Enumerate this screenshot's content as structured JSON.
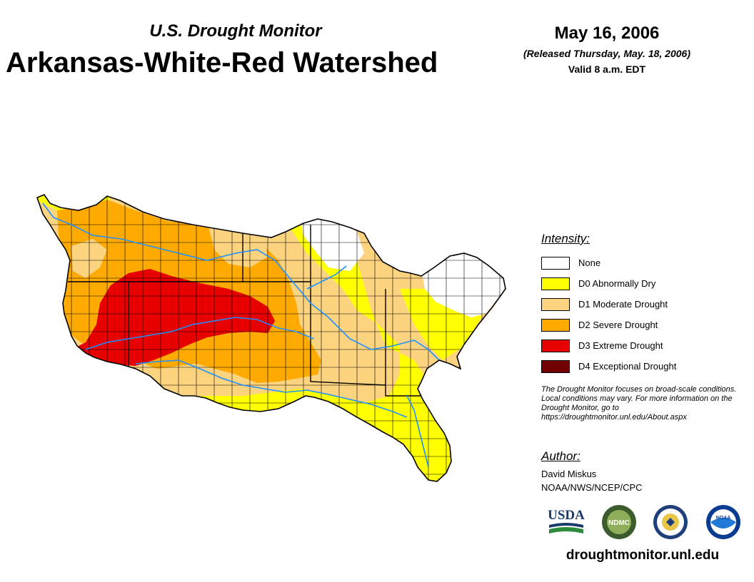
{
  "header": {
    "subtitle": "U.S. Drought Monitor",
    "title": "Arkansas-White-Red Watershed",
    "date": "May 16, 2006",
    "released": "(Released Thursday, May. 18, 2006)",
    "valid": "Valid 8 a.m. EDT"
  },
  "legend": {
    "heading": "Intensity:",
    "items": [
      {
        "label": "None",
        "color": "#ffffff"
      },
      {
        "label": "D0 Abnormally Dry",
        "color": "#ffff00"
      },
      {
        "label": "D1 Moderate Drought",
        "color": "#fcd37f"
      },
      {
        "label": "D2 Severe Drought",
        "color": "#ffaa00"
      },
      {
        "label": "D3 Extreme Drought",
        "color": "#e60000"
      },
      {
        "label": "D4 Exceptional Drought",
        "color": "#730000"
      }
    ]
  },
  "note": "The Drought Monitor focuses on broad-scale conditions. Local conditions may vary. For more information on the Drought Monitor, go to https://droughtmonitor.unl.edu/About.aspx",
  "author": {
    "heading": "Author:",
    "name": "David Miskus",
    "org": "NOAA/NWS/NCEP/CPC"
  },
  "logos": {
    "usda": "USDA",
    "ndmc": "NDMC",
    "noaa": "NOAA"
  },
  "colors": {
    "river": "#1e90ff",
    "county_line": "#000000"
  },
  "website": "droughtmonitor.unl.edu"
}
